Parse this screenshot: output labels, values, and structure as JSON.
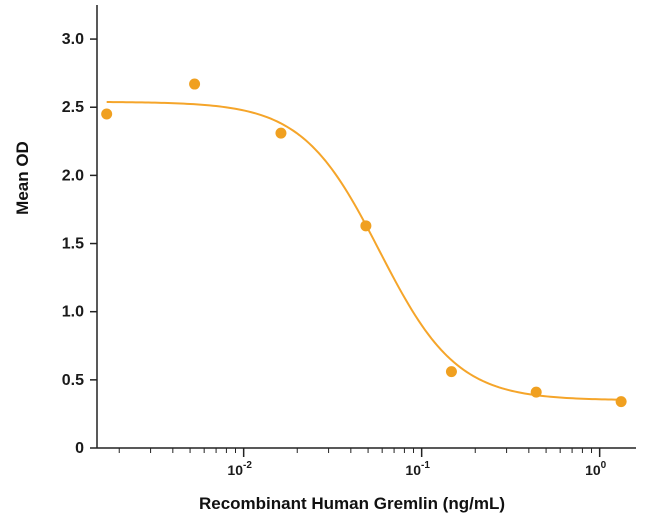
{
  "chart_data": {
    "type": "scatter",
    "xlabel": "Recombinant Human Gremlin (ng/mL)",
    "ylabel": "Mean OD",
    "x_scale": "log",
    "xlim": [
      0.0015,
      1.6
    ],
    "ylim": [
      0,
      3.25
    ],
    "y_ticks": [
      "0",
      "0.5",
      "1.0",
      "1.5",
      "2.0",
      "2.5",
      "3.0"
    ],
    "x_ticks": [
      {
        "base": "10",
        "exp": "-2"
      },
      {
        "base": "10",
        "exp": "-1"
      },
      {
        "base": "10",
        "exp": "0"
      }
    ],
    "series": [
      {
        "points": [
          {
            "x": 0.0017,
            "y": 2.45
          },
          {
            "x": 0.0053,
            "y": 2.67
          },
          {
            "x": 0.0162,
            "y": 2.31
          },
          {
            "x": 0.0486,
            "y": 1.63
          },
          {
            "x": 0.147,
            "y": 0.56
          },
          {
            "x": 0.44,
            "y": 0.41
          },
          {
            "x": 1.32,
            "y": 0.34
          }
        ]
      }
    ],
    "fit_curve": {
      "model": "4PL",
      "top": 2.54,
      "bottom": 0.35,
      "ec50": 0.058,
      "hill": 2.0,
      "x_range": [
        0.0017,
        1.32
      ]
    },
    "colors": {
      "marker": "#F0A020",
      "curve": "#F5A52A",
      "axis": "#222222"
    },
    "grid": false,
    "legend": "none"
  }
}
